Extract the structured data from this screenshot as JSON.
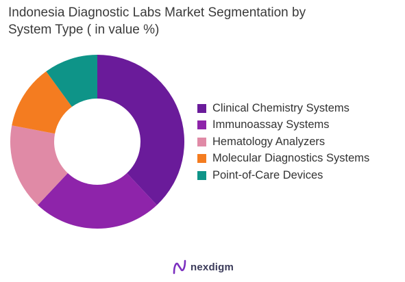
{
  "title": "Indonesia Diagnostic Labs Market Segmentation by\nSystem Type ( in value %)",
  "brand": {
    "name": "nexdigm",
    "logo_icon": "nexdigm-logo-icon",
    "logo_color": "#7b2fbf"
  },
  "chart_data": {
    "type": "pie",
    "donut": true,
    "title": "Indonesia Diagnostic Labs Market Segmentation by System Type ( in value %)",
    "legend_position": "right",
    "categories": [
      "Clinical Chemistry Systems",
      "Immunoassay Systems",
      "Hematology Analyzers",
      "Molecular Diagnostics Systems",
      "Point-of-Care Devices"
    ],
    "values": [
      38,
      24,
      16,
      12,
      10
    ],
    "colors": [
      "#6a1b9a",
      "#8e24aa",
      "#e08aa6",
      "#f47c20",
      "#0e9488"
    ]
  }
}
